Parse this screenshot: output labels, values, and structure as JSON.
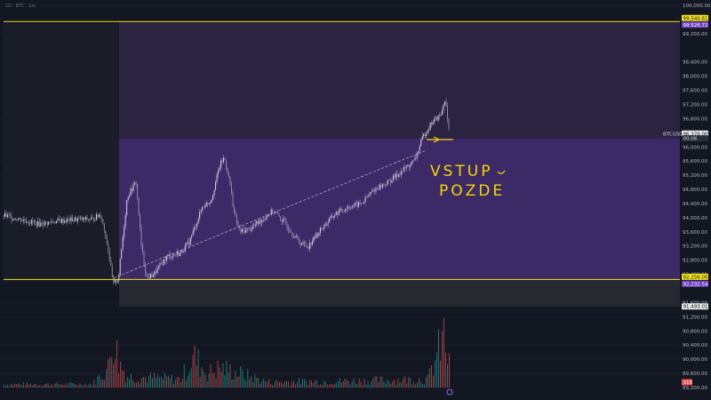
{
  "header": {
    "text": "1D · BTC · 1m"
  },
  "annotation": {
    "line1": "VSTUP",
    "line2": "POZDE"
  },
  "colors": {
    "background": "#131722",
    "zone_upper": "#2e2643",
    "zone_middle": "#402d6e",
    "zone_lower": "#2a2b31",
    "horizontal_line": "#f2e11c",
    "up_candle": "#26a69a",
    "down_candle": "#ef5350",
    "annotation": "#f5d400"
  },
  "chart_data": {
    "type": "candlestick",
    "symbol": "BTCUSDT",
    "ylim": [
      89200,
      100000
    ],
    "y_ticks": [
      100000,
      99200,
      98400,
      98000,
      97600,
      97200,
      96800,
      96000,
      95600,
      95200,
      94800,
      94400,
      94000,
      93600,
      93200,
      92800,
      92400,
      91600,
      91200,
      90800,
      90400,
      90000,
      89600,
      89200
    ],
    "y_tick_labels": [
      "100,000.00",
      "99,200.00",
      "98,400.00",
      "98,000.00",
      "97,600.00",
      "97,200.00",
      "96,800.00",
      "96,000.00",
      "95,600.00",
      "95,200.00",
      "94,800.00",
      "94,400.00",
      "94,000.00",
      "93,600.00",
      "93,200.00",
      "92,800.00",
      "92,400.00",
      "91,600.00",
      "91,200.00",
      "90,800.00",
      "90,400.00",
      "90,000.00",
      "89,600.00",
      "89,200.00"
    ],
    "horizontal_lines": [
      99540.61,
      92256.0
    ],
    "price_tags": [
      {
        "label": "99,540.61",
        "value": 99540.61,
        "style": "yellow"
      },
      {
        "label": "99,526.72",
        "value": 99526.72,
        "style": "purple"
      },
      {
        "label": "BTCUSDT",
        "value": 96376,
        "style": "symbol"
      },
      {
        "label": "96,376.00",
        "value": 96376,
        "style": "white"
      },
      {
        "label": "00:06",
        "value": 96240,
        "style": "dark"
      },
      {
        "label": "92,256.00",
        "value": 92256.0,
        "style": "yellow"
      },
      {
        "label": "92,232.54",
        "value": 92232.54,
        "style": "purple"
      },
      {
        "label": "91,493.01",
        "value": 91493.01,
        "style": "white"
      },
      {
        "label": "115",
        "value": 89200,
        "style": "red"
      }
    ],
    "zones": [
      {
        "from": 96240,
        "to": 99526.72,
        "color": "upper"
      },
      {
        "from": 92232.54,
        "to": 96240,
        "color": "middle"
      },
      {
        "from": 91493.01,
        "to": 92232.54,
        "color": "lower"
      }
    ],
    "price_path": [
      {
        "i": 0,
        "p": 94060
      },
      {
        "i": 20,
        "p": 93950
      },
      {
        "i": 40,
        "p": 93820
      },
      {
        "i": 60,
        "p": 93900
      },
      {
        "i": 80,
        "p": 93950
      },
      {
        "i": 100,
        "p": 93950
      },
      {
        "i": 110,
        "p": 94100
      },
      {
        "i": 118,
        "p": 93200
      },
      {
        "i": 124,
        "p": 92100
      },
      {
        "i": 130,
        "p": 92300
      },
      {
        "i": 140,
        "p": 94600
      },
      {
        "i": 150,
        "p": 95000
      },
      {
        "i": 156,
        "p": 93200
      },
      {
        "i": 162,
        "p": 92300
      },
      {
        "i": 170,
        "p": 92400
      },
      {
        "i": 185,
        "p": 92900
      },
      {
        "i": 200,
        "p": 93000
      },
      {
        "i": 210,
        "p": 93300
      },
      {
        "i": 225,
        "p": 94300
      },
      {
        "i": 235,
        "p": 94500
      },
      {
        "i": 245,
        "p": 95500
      },
      {
        "i": 250,
        "p": 95700
      },
      {
        "i": 256,
        "p": 95000
      },
      {
        "i": 262,
        "p": 94000
      },
      {
        "i": 268,
        "p": 93600
      },
      {
        "i": 280,
        "p": 93700
      },
      {
        "i": 290,
        "p": 93900
      },
      {
        "i": 305,
        "p": 94200
      },
      {
        "i": 320,
        "p": 93800
      },
      {
        "i": 335,
        "p": 93300
      },
      {
        "i": 345,
        "p": 93200
      },
      {
        "i": 360,
        "p": 93700
      },
      {
        "i": 375,
        "p": 94100
      },
      {
        "i": 390,
        "p": 94300
      },
      {
        "i": 405,
        "p": 94400
      },
      {
        "i": 420,
        "p": 94800
      },
      {
        "i": 435,
        "p": 95000
      },
      {
        "i": 450,
        "p": 95300
      },
      {
        "i": 465,
        "p": 95600
      },
      {
        "i": 475,
        "p": 96300
      },
      {
        "i": 485,
        "p": 96700
      },
      {
        "i": 495,
        "p": 96900
      },
      {
        "i": 500,
        "p": 97400
      },
      {
        "i": 503,
        "p": 96600
      },
      {
        "i": 505,
        "p": 96376
      }
    ],
    "trend_line": [
      {
        "i": 125,
        "p": 92300
      },
      {
        "i": 478,
        "p": 95900
      }
    ],
    "volume_path": [
      {
        "i": 0,
        "v": 0.06
      },
      {
        "i": 100,
        "v": 0.06
      },
      {
        "i": 118,
        "v": 0.35
      },
      {
        "i": 124,
        "v": 0.95
      },
      {
        "i": 130,
        "v": 0.45
      },
      {
        "i": 140,
        "v": 0.2
      },
      {
        "i": 200,
        "v": 0.15
      },
      {
        "i": 215,
        "v": 0.55
      },
      {
        "i": 230,
        "v": 0.25
      },
      {
        "i": 245,
        "v": 0.35
      },
      {
        "i": 300,
        "v": 0.1
      },
      {
        "i": 400,
        "v": 0.12
      },
      {
        "i": 480,
        "v": 0.15
      },
      {
        "i": 498,
        "v": 0.9
      },
      {
        "i": 505,
        "v": 0.3
      }
    ]
  }
}
